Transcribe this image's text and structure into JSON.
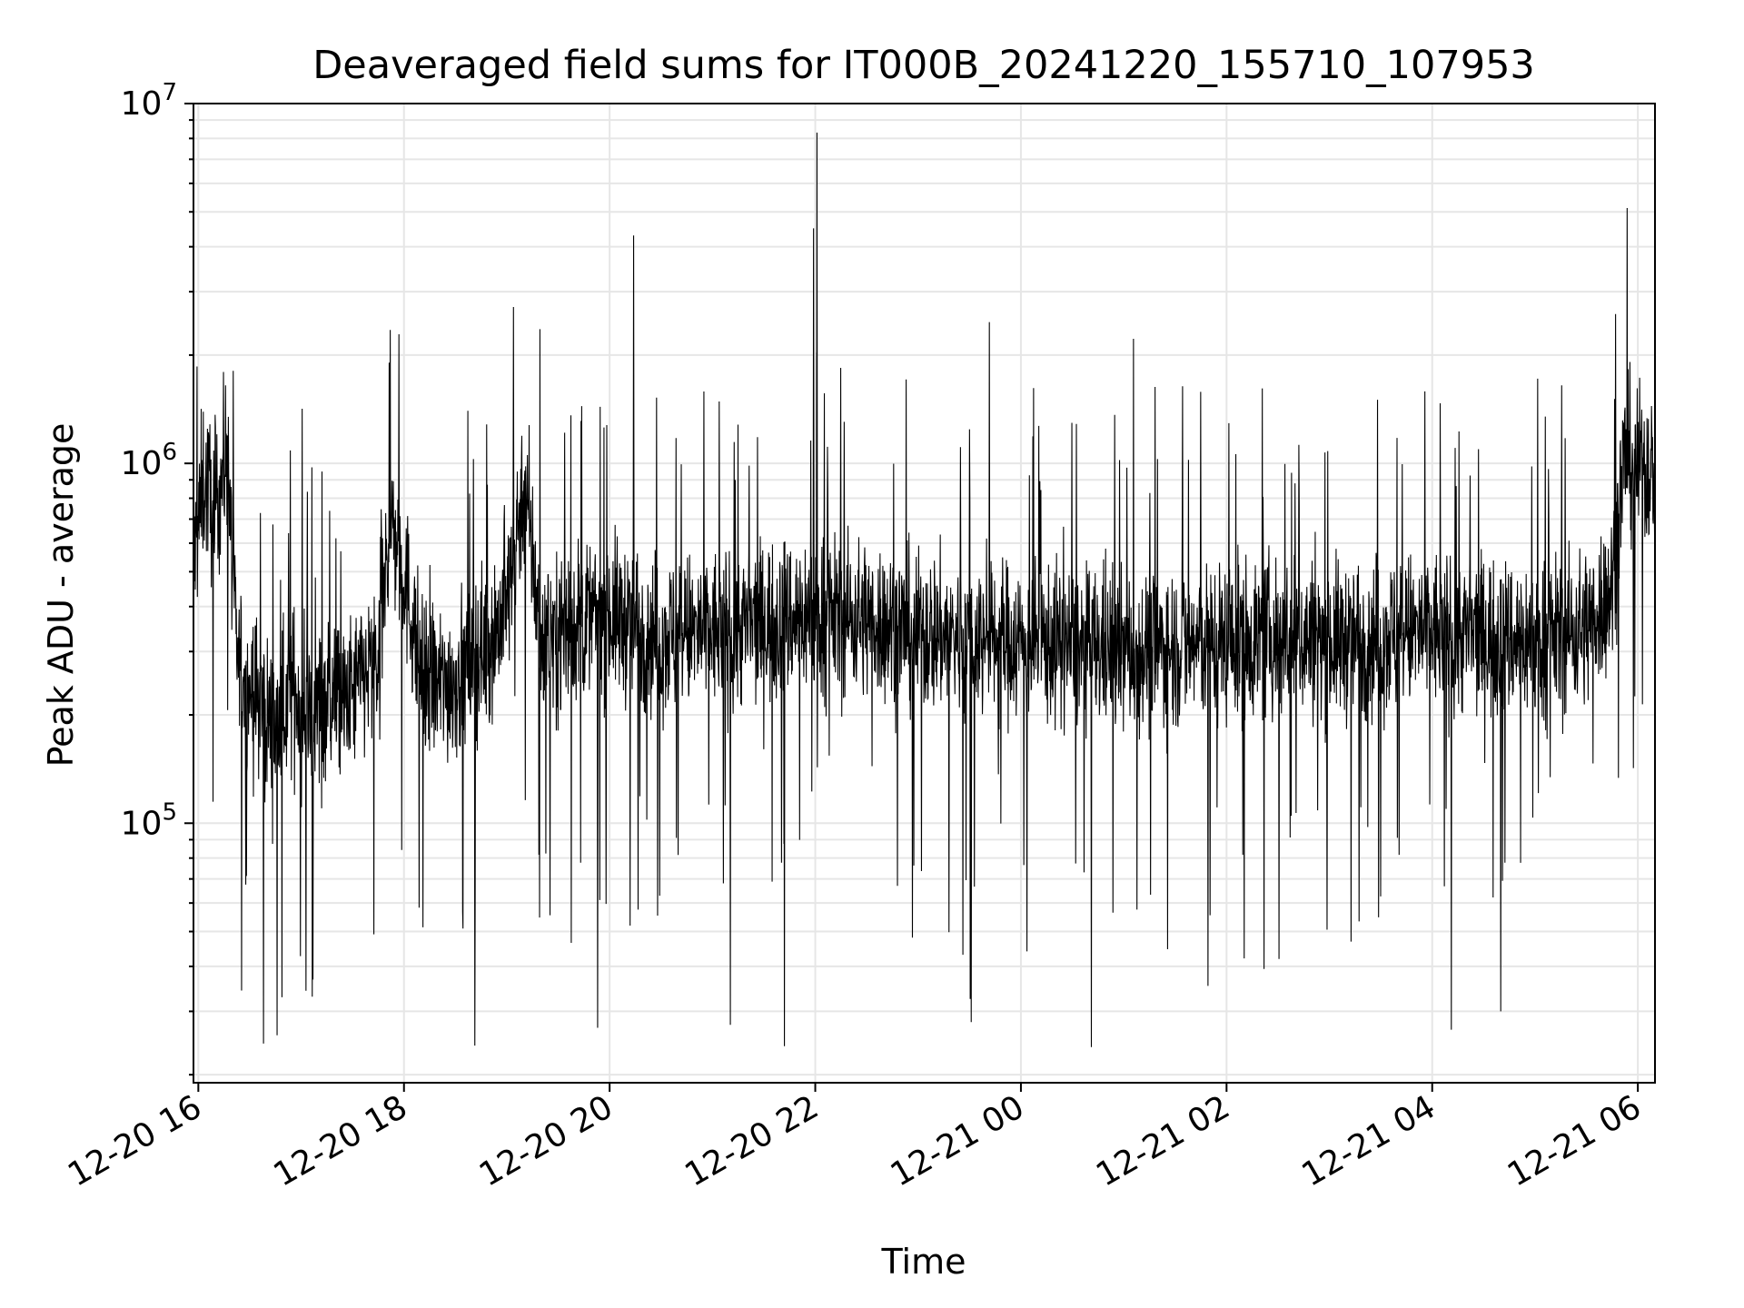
{
  "chart_data": {
    "type": "line",
    "title": "Deaveraged field sums for IT000B_20241220_155710_107953",
    "xlabel": "Time",
    "ylabel": "Peak ADU - average",
    "yscale": "log",
    "grid": true,
    "ylim": [
      19000,
      10000000
    ],
    "xlim": [
      "2024-12-20T15:57:10",
      "2024-12-21T06:10:00"
    ],
    "x_tick_labels": [
      "12-20 16",
      "12-20 18",
      "12-20 20",
      "12-20 22",
      "12-21 00",
      "12-21 02",
      "12-21 04",
      "12-21 06"
    ],
    "x_tick_times": [
      "2024-12-20T16:00",
      "2024-12-20T18:00",
      "2024-12-20T20:00",
      "2024-12-20T22:00",
      "2024-12-21T00:00",
      "2024-12-21T02:00",
      "2024-12-21T04:00",
      "2024-12-21T06:00"
    ],
    "y_tick_labels": [
      {
        "base": "10",
        "exp": "5",
        "value": 100000
      },
      {
        "base": "10",
        "exp": "6",
        "value": 1000000
      },
      {
        "base": "10",
        "exp": "7",
        "value": 10000000
      }
    ],
    "series": [
      {
        "color": "#000000",
        "points": [
          [
            "2024-12-20T15:57",
            500000
          ],
          [
            "2024-12-20T16:03",
            900000
          ],
          [
            "2024-12-20T16:10",
            750000
          ],
          [
            "2024-12-20T16:17",
            1100000
          ],
          [
            "2024-12-20T16:22",
            300000
          ],
          [
            "2024-12-20T16:27",
            250000
          ],
          [
            "2024-12-20T16:35",
            220000
          ],
          [
            "2024-12-20T16:45",
            180000
          ],
          [
            "2024-12-20T16:55",
            240000
          ],
          [
            "2024-12-20T17:05",
            190000
          ],
          [
            "2024-12-20T17:15",
            230000
          ],
          [
            "2024-12-20T17:25",
            210000
          ],
          [
            "2024-12-20T17:35",
            250000
          ],
          [
            "2024-12-20T17:45",
            280000
          ],
          [
            "2024-12-20T17:52",
            700000
          ],
          [
            "2024-12-20T18:00",
            500000
          ],
          [
            "2024-12-20T18:10",
            260000
          ],
          [
            "2024-12-20T18:20",
            240000
          ],
          [
            "2024-12-20T18:30",
            250000
          ],
          [
            "2024-12-20T18:40",
            280000
          ],
          [
            "2024-12-20T18:50",
            320000
          ],
          [
            "2024-12-20T19:00",
            400000
          ],
          [
            "2024-12-20T19:10",
            900000
          ],
          [
            "2024-12-20T19:20",
            330000
          ],
          [
            "2024-12-20T19:40",
            360000
          ],
          [
            "2024-12-20T20:00",
            380000
          ],
          [
            "2024-12-20T20:30",
            330000
          ],
          [
            "2024-12-20T21:00",
            340000
          ],
          [
            "2024-12-20T21:30",
            360000
          ],
          [
            "2024-12-20T22:00",
            380000
          ],
          [
            "2024-12-20T22:30",
            370000
          ],
          [
            "2024-12-20T23:00",
            340000
          ],
          [
            "2024-12-20T23:30",
            330000
          ],
          [
            "2024-12-21T00:00",
            320000
          ],
          [
            "2024-12-21T00:30",
            310000
          ],
          [
            "2024-12-21T01:00",
            300000
          ],
          [
            "2024-12-21T01:30",
            310000
          ],
          [
            "2024-12-21T02:00",
            320000
          ],
          [
            "2024-12-21T02:30",
            330000
          ],
          [
            "2024-12-21T03:00",
            320000
          ],
          [
            "2024-12-21T03:30",
            330000
          ],
          [
            "2024-12-21T04:00",
            340000
          ],
          [
            "2024-12-21T04:30",
            330000
          ],
          [
            "2024-12-21T05:00",
            320000
          ],
          [
            "2024-12-21T05:30",
            350000
          ],
          [
            "2024-12-21T05:45",
            450000
          ],
          [
            "2024-12-21T05:52",
            1050000
          ],
          [
            "2024-12-21T06:00",
            1000000
          ],
          [
            "2024-12-21T06:10",
            950000
          ]
        ],
        "spikes": [
          [
            "2024-12-20T20:14",
            4300000
          ],
          [
            "2024-12-20T21:59",
            4500000
          ],
          [
            "2024-12-20T22:01",
            8300000
          ],
          [
            "2024-12-21T05:47",
            2600000
          ]
        ],
        "dips": [
          [
            "2024-12-20T19:53",
            27000
          ],
          [
            "2024-12-20T21:42",
            24000
          ],
          [
            "2024-12-20T23:31",
            28000
          ],
          [
            "2024-12-21T04:40",
            30000
          ]
        ]
      }
    ]
  }
}
